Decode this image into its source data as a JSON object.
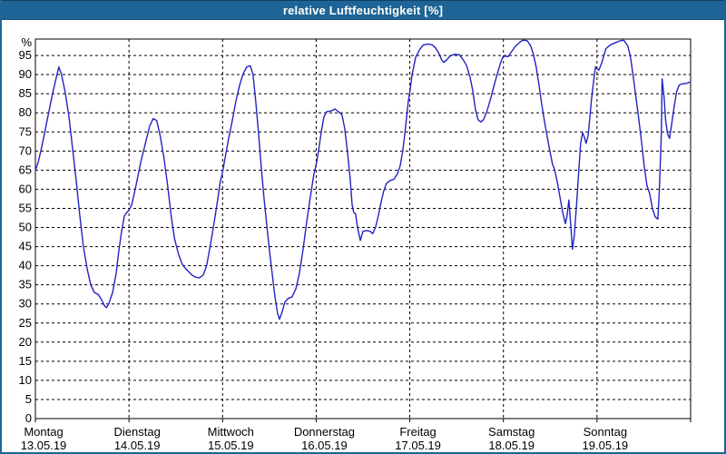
{
  "window": {
    "title": "relative Luftfeuchtigkeit [%]"
  },
  "colors": {
    "titlebar_bg": "#1e6496",
    "titlebar_text": "#ffffff",
    "window_border": "#1e6496",
    "plot_background": "#ffffff",
    "line": "#2323c2",
    "grid": "#000000",
    "axis": "#000000",
    "label_text": "#000000"
  },
  "chart_data": {
    "type": "line",
    "title": "relative Luftfeuchtigkeit [%]",
    "ylabel": "%",
    "xlabel": "",
    "grid": "dashed",
    "legend": "none",
    "ylim": [
      0,
      99.3
    ],
    "xlim": [
      0,
      168
    ],
    "x_unit": "hours",
    "y_ticks": [
      0,
      5,
      10,
      15,
      20,
      25,
      30,
      35,
      40,
      45,
      50,
      55,
      60,
      65,
      70,
      75,
      80,
      85,
      90,
      95
    ],
    "x_days": [
      {
        "name": "Montag",
        "date": "13.05.19"
      },
      {
        "name": "Dienstag",
        "date": "14.05.19"
      },
      {
        "name": "Mittwoch",
        "date": "15.05.19"
      },
      {
        "name": "Donnerstag",
        "date": "16.05.19"
      },
      {
        "name": "Freitag",
        "date": "17.05.19"
      },
      {
        "name": "Samstag",
        "date": "18.05.19"
      },
      {
        "name": "Sonntag",
        "date": "19.05.19"
      }
    ],
    "series": [
      {
        "name": "relative Luftfeuchtigkeit",
        "color": "#2323c2",
        "points": [
          [
            0,
            65
          ],
          [
            0.7,
            67
          ],
          [
            1.4,
            70
          ],
          [
            2.2,
            74
          ],
          [
            3,
            78
          ],
          [
            3.7,
            81.5
          ],
          [
            4.4,
            85
          ],
          [
            5.3,
            89
          ],
          [
            6,
            92
          ],
          [
            6.7,
            90
          ],
          [
            7.7,
            85
          ],
          [
            8.6,
            79
          ],
          [
            9.5,
            71
          ],
          [
            10.5,
            62
          ],
          [
            11.4,
            53
          ],
          [
            12.3,
            45
          ],
          [
            13.3,
            39
          ],
          [
            14.2,
            35
          ],
          [
            15.1,
            33
          ],
          [
            16.1,
            32.5
          ],
          [
            17,
            31
          ],
          [
            17.7,
            29.5
          ],
          [
            18.2,
            29
          ],
          [
            18.8,
            30
          ],
          [
            19.8,
            33
          ],
          [
            20.7,
            38
          ],
          [
            21.4,
            44
          ],
          [
            22.1,
            49
          ],
          [
            22.8,
            53
          ],
          [
            23.5,
            54
          ],
          [
            24,
            54.5
          ],
          [
            24.7,
            56
          ],
          [
            25.8,
            61
          ],
          [
            27,
            67
          ],
          [
            28.2,
            72
          ],
          [
            29.3,
            76.5
          ],
          [
            30.2,
            78.5
          ],
          [
            31.1,
            78
          ],
          [
            32,
            74
          ],
          [
            33,
            68
          ],
          [
            33.9,
            61
          ],
          [
            34.8,
            53
          ],
          [
            35.7,
            47
          ],
          [
            36.7,
            43
          ],
          [
            37.6,
            40.5
          ],
          [
            38.3,
            39.5
          ],
          [
            39.2,
            38.5
          ],
          [
            40.2,
            37.5
          ],
          [
            41.1,
            37
          ],
          [
            42,
            36.8
          ],
          [
            43,
            37.5
          ],
          [
            43.9,
            40
          ],
          [
            44.8,
            45
          ],
          [
            45.8,
            51
          ],
          [
            46.7,
            57
          ],
          [
            47.4,
            62
          ],
          [
            48,
            64.5
          ],
          [
            48.6,
            68
          ],
          [
            49.5,
            73
          ],
          [
            50.5,
            78
          ],
          [
            51.4,
            83
          ],
          [
            52.3,
            87
          ],
          [
            53.2,
            90
          ],
          [
            54.2,
            92
          ],
          [
            55.1,
            92.3
          ],
          [
            55.8,
            90
          ],
          [
            56.5,
            83
          ],
          [
            57.2,
            75
          ],
          [
            57.9,
            66
          ],
          [
            58.6,
            58
          ],
          [
            59.3,
            51
          ],
          [
            60,
            44
          ],
          [
            60.7,
            38
          ],
          [
            61.4,
            32
          ],
          [
            62.1,
            27.5
          ],
          [
            62.6,
            26
          ],
          [
            63.3,
            28
          ],
          [
            64,
            30.5
          ],
          [
            64.9,
            31.5
          ],
          [
            65.8,
            31.8
          ],
          [
            66.8,
            34
          ],
          [
            67.7,
            38
          ],
          [
            68.6,
            44
          ],
          [
            69.5,
            51
          ],
          [
            70.5,
            58
          ],
          [
            71.4,
            64
          ],
          [
            72,
            66.5
          ],
          [
            72.6,
            70
          ],
          [
            73.3,
            75
          ],
          [
            74,
            79
          ],
          [
            74.7,
            80.3
          ],
          [
            75.9,
            80.5
          ],
          [
            76.8,
            81
          ],
          [
            77.7,
            80.3
          ],
          [
            78.6,
            79.5
          ],
          [
            79.3,
            76
          ],
          [
            80,
            70
          ],
          [
            80.7,
            63
          ],
          [
            81.2,
            56
          ],
          [
            81.6,
            54
          ],
          [
            82.1,
            53.5
          ],
          [
            82.6,
            50
          ],
          [
            83.3,
            46.6
          ],
          [
            84,
            49
          ],
          [
            84.9,
            49.2
          ],
          [
            85.8,
            49
          ],
          [
            86.5,
            48.4
          ],
          [
            87.2,
            50
          ],
          [
            87.9,
            53
          ],
          [
            88.6,
            56.5
          ],
          [
            89.3,
            59.5
          ],
          [
            90,
            61.5
          ],
          [
            90.9,
            62.3
          ],
          [
            91.9,
            62.6
          ],
          [
            92.8,
            64
          ],
          [
            93.5,
            66
          ],
          [
            94.2,
            70
          ],
          [
            94.9,
            76
          ],
          [
            95.6,
            83
          ],
          [
            96,
            85.5
          ],
          [
            96.6,
            90
          ],
          [
            97.5,
            94.5
          ],
          [
            98.5,
            96.5
          ],
          [
            99.4,
            97.7
          ],
          [
            100.5,
            98
          ],
          [
            101.7,
            97.8
          ],
          [
            102.6,
            97
          ],
          [
            103.5,
            95.5
          ],
          [
            104.2,
            93.8
          ],
          [
            104.7,
            93.2
          ],
          [
            105.4,
            93.8
          ],
          [
            106.3,
            94.8
          ],
          [
            107.5,
            95.3
          ],
          [
            108.7,
            95.2
          ],
          [
            109.6,
            94
          ],
          [
            110.5,
            92.5
          ],
          [
            111.4,
            89.5
          ],
          [
            112.1,
            86
          ],
          [
            112.8,
            81
          ],
          [
            113.5,
            78.2
          ],
          [
            114.2,
            77.6
          ],
          [
            114.9,
            78.2
          ],
          [
            115.8,
            80.5
          ],
          [
            116.8,
            84
          ],
          [
            117.7,
            87.5
          ],
          [
            118.6,
            90.8
          ],
          [
            119.5,
            93.8
          ],
          [
            120,
            94.8
          ],
          [
            120.5,
            94.8
          ],
          [
            121.2,
            94.7
          ],
          [
            122.1,
            96
          ],
          [
            123,
            97.3
          ],
          [
            124,
            98.3
          ],
          [
            124.9,
            99
          ],
          [
            126.1,
            98.9
          ],
          [
            127,
            97.5
          ],
          [
            127.7,
            95.3
          ],
          [
            128.4,
            92
          ],
          [
            129.1,
            87.5
          ],
          [
            129.8,
            82.5
          ],
          [
            130.5,
            78
          ],
          [
            131.2,
            74
          ],
          [
            131.9,
            70
          ],
          [
            132.6,
            66.5
          ],
          [
            133.1,
            65.3
          ],
          [
            133.8,
            62
          ],
          [
            134.5,
            58
          ],
          [
            135.2,
            54
          ],
          [
            135.9,
            51
          ],
          [
            136.3,
            53
          ],
          [
            136.8,
            57.2
          ],
          [
            137.3,
            50
          ],
          [
            137.7,
            44.3
          ],
          [
            138.2,
            48
          ],
          [
            138.9,
            58
          ],
          [
            139.4,
            66
          ],
          [
            139.8,
            72
          ],
          [
            140.3,
            74.8
          ],
          [
            140.8,
            73.5
          ],
          [
            141.2,
            72
          ],
          [
            141.7,
            74
          ],
          [
            142.2,
            79
          ],
          [
            142.6,
            83.5
          ],
          [
            143.1,
            88
          ],
          [
            143.6,
            92
          ],
          [
            144,
            91.5
          ],
          [
            144.5,
            91.2
          ],
          [
            145.2,
            93
          ],
          [
            146.3,
            96.8
          ],
          [
            147.5,
            97.8
          ],
          [
            148.6,
            98.3
          ],
          [
            149.8,
            98.8
          ],
          [
            150.9,
            99
          ],
          [
            151.9,
            97.5
          ],
          [
            152.6,
            94.5
          ],
          [
            153.3,
            89.5
          ],
          [
            154,
            84
          ],
          [
            154.7,
            78.5
          ],
          [
            155.4,
            72.5
          ],
          [
            156.1,
            66
          ],
          [
            156.8,
            61
          ],
          [
            157.5,
            58.8
          ],
          [
            158.2,
            55
          ],
          [
            158.9,
            52.8
          ],
          [
            159.6,
            52.2
          ],
          [
            160,
            60
          ],
          [
            160.5,
            75
          ],
          [
            160.7,
            88.9
          ],
          [
            161.2,
            84
          ],
          [
            161.6,
            78
          ],
          [
            162.1,
            74.5
          ],
          [
            162.6,
            73.3
          ],
          [
            163,
            76
          ],
          [
            163.7,
            81
          ],
          [
            164.4,
            85.5
          ],
          [
            165.1,
            87.3
          ],
          [
            166,
            87.6
          ],
          [
            167,
            87.7
          ],
          [
            167.7,
            88
          ]
        ]
      }
    ]
  }
}
